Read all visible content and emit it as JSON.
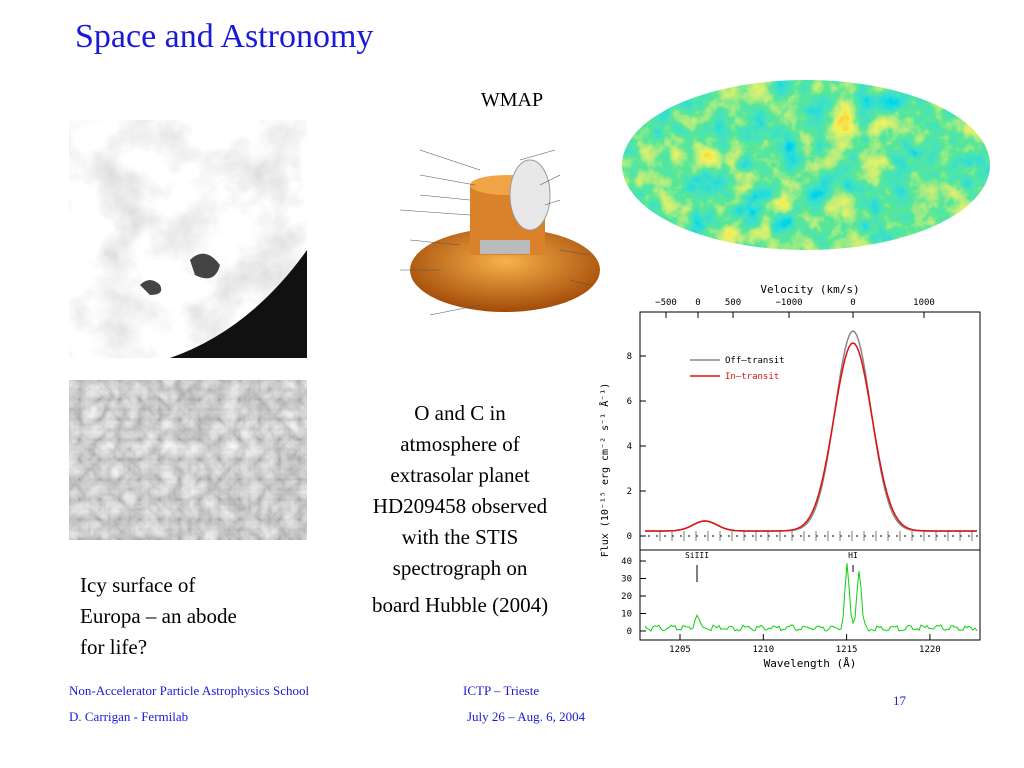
{
  "title": "Space and Astronomy",
  "wmap_label": "WMAP",
  "description": [
    "O and C in",
    "atmosphere of",
    "extrasolar planet",
    "HD209458 observed",
    "with the STIS",
    "spectrograph on",
    "board Hubble (2004)"
  ],
  "caption": [
    "Icy surface of",
    "Europa – an abode",
    "for life?"
  ],
  "footer": {
    "school": "Non-Accelerator Particle Astrophysics School",
    "venue": "ICTP – Trieste",
    "author": "D. Carrigan - Fermilab",
    "dates": "July 26 – Aug. 6, 2004",
    "page_number": "17"
  },
  "spectrum": {
    "top_axis_label": "Velocity (km/s)",
    "x_label": "Wavelength (Å)",
    "y_label": "Flux (10⁻¹⁵ erg cm⁻² s⁻¹ Å⁻¹)",
    "legend": [
      "Off–transit",
      "In–transit"
    ],
    "line_labels": [
      "SiIII",
      "HI"
    ],
    "top_ticks": [
      "−500",
      "0",
      "500",
      "−1000",
      "0",
      "1000"
    ],
    "x_ticks": [
      "1205",
      "1210",
      "1215",
      "1220"
    ],
    "y_ticks": [
      "0",
      "2",
      "4",
      "6",
      "8"
    ],
    "y2_ticks": [
      "0",
      "10",
      "20",
      "30",
      "40"
    ]
  }
}
